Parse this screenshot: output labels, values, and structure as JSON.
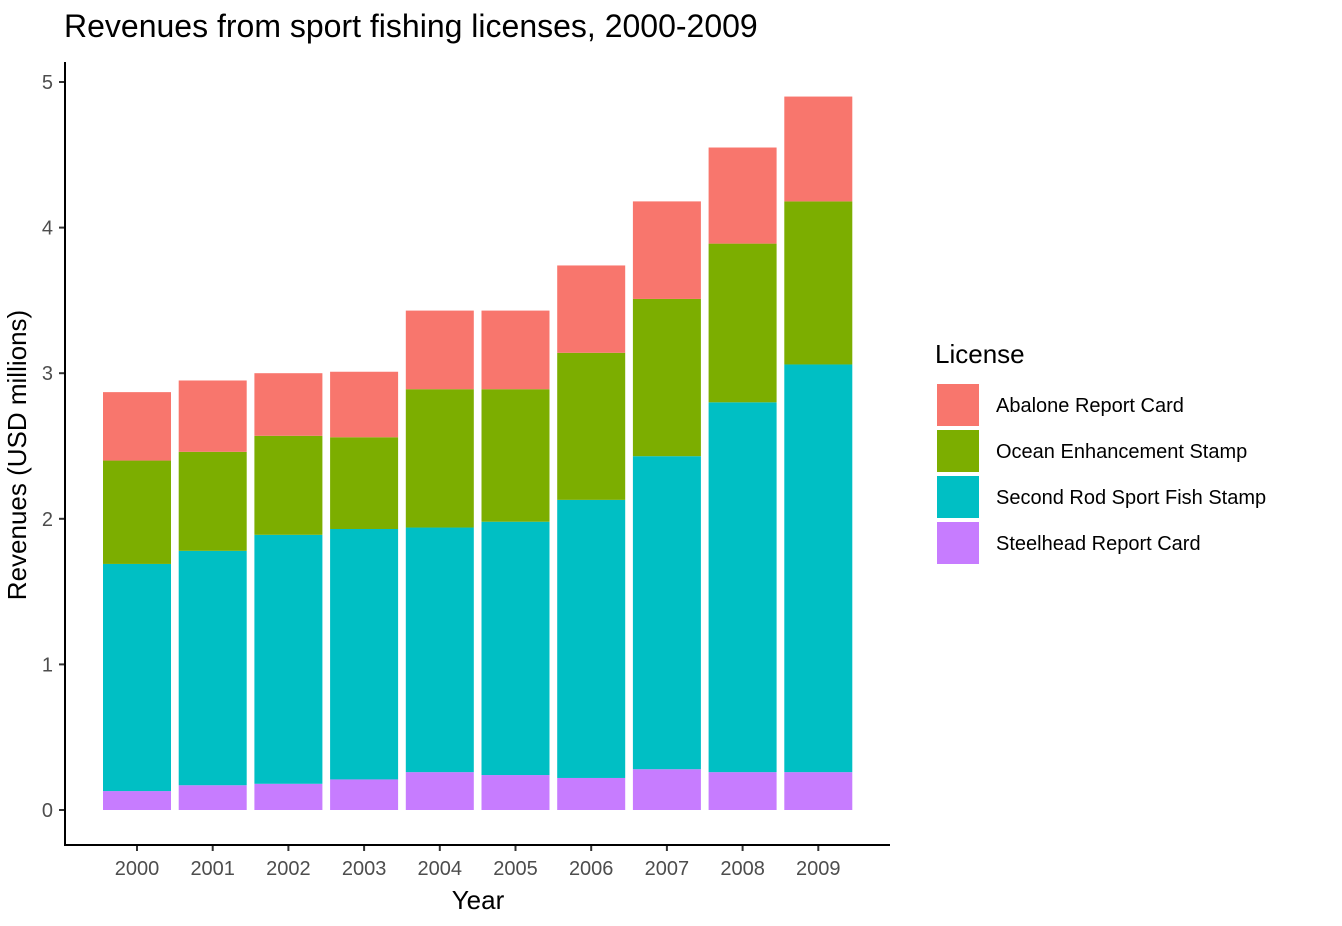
{
  "chart_data": {
    "type": "bar",
    "stacked": true,
    "title": "Revenues from sport fishing licenses, 2000-2009",
    "xlabel": "Year",
    "ylabel": "Revenues (USD millions)",
    "ylim": [
      0,
      5
    ],
    "yticks": [
      "0",
      "1",
      "2",
      "3",
      "4",
      "5"
    ],
    "grid": false,
    "legend_position": "right",
    "legend_title": "License",
    "categories": [
      "2000",
      "2001",
      "2002",
      "2003",
      "2004",
      "2005",
      "2006",
      "2007",
      "2008",
      "2009"
    ],
    "series": [
      {
        "name": "Abalone Report Card",
        "color": "#F8766D",
        "values": [
          0.47,
          0.49,
          0.43,
          0.45,
          0.54,
          0.54,
          0.6,
          0.67,
          0.66,
          0.72
        ]
      },
      {
        "name": "Ocean Enhancement Stamp",
        "color": "#7CAE00",
        "values": [
          0.71,
          0.68,
          0.68,
          0.63,
          0.95,
          0.91,
          1.01,
          1.08,
          1.09,
          1.12
        ]
      },
      {
        "name": "Second Rod Sport Fish Stamp",
        "color": "#00BFC4",
        "values": [
          1.56,
          1.61,
          1.71,
          1.72,
          1.68,
          1.74,
          1.91,
          2.15,
          2.54,
          2.8
        ]
      },
      {
        "name": "Steelhead Report Card",
        "color": "#C77CFF",
        "values": [
          0.13,
          0.17,
          0.18,
          0.21,
          0.26,
          0.24,
          0.22,
          0.28,
          0.26,
          0.26
        ]
      }
    ],
    "stack_order_bottom_to_top": [
      "Steelhead Report Card",
      "Second Rod Sport Fish Stamp",
      "Ocean Enhancement Stamp",
      "Abalone Report Card"
    ]
  }
}
